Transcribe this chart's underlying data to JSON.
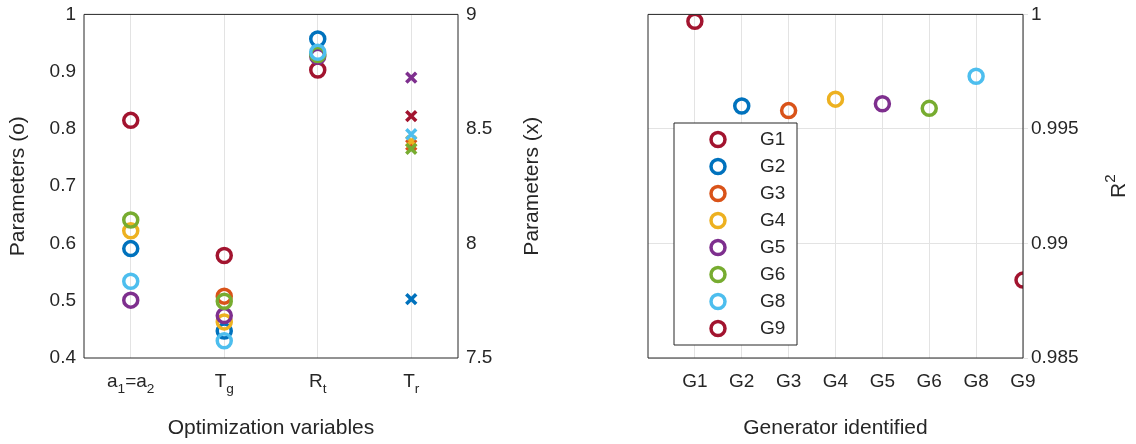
{
  "chart_data": [
    {
      "type": "scatter",
      "xlabel": "Optimization variables",
      "ylabel": "Parameters (o)",
      "y2label": "Parameters (x)",
      "categories": [
        "a$_{1}$=a$_{2}$",
        "T$_{g}$",
        "R$_{t}$",
        "T$_{r}$"
      ],
      "ylim": [
        0.4,
        1
      ],
      "yticks": [
        0.4,
        0.5,
        0.6,
        0.7,
        0.8,
        0.9,
        1
      ],
      "y2lim": [
        7.5,
        9
      ],
      "y2ticks": [
        7.5,
        8,
        8.5,
        9
      ],
      "grid": "x",
      "marker": "circle",
      "series": [
        {
          "color": "#a2142f",
          "values": [
            0.815,
            0.579,
            0.903,
            null
          ]
        },
        {
          "color": "#0072bd",
          "values": [
            0.591,
            0.447,
            0.957,
            null
          ]
        },
        {
          "color": "#d95319",
          "values": [
            null,
            0.508,
            null,
            null
          ]
        },
        {
          "color": "#edb120",
          "values": [
            0.622,
            0.463,
            null,
            null
          ]
        },
        {
          "color": "#7e2f8e",
          "values": [
            0.501,
            0.474,
            0.927,
            null
          ]
        },
        {
          "color": "#77ac30",
          "values": [
            0.641,
            0.499,
            0.93,
            null
          ]
        },
        {
          "color": "#4dbeee",
          "values": [
            0.534,
            0.43,
            0.934,
            null
          ]
        },
        {
          "color": "#a2142f",
          "axis": "y2",
          "marker": "cross",
          "values": [
            null,
            null,
            null,
            8.556
          ]
        },
        {
          "color": "#0072bd",
          "axis": "y2",
          "marker": "cross",
          "values": [
            null,
            null,
            null,
            7.757
          ]
        },
        {
          "color": "#d95319",
          "axis": "y2",
          "marker": "cross",
          "values": [
            null,
            null,
            null,
            8.43
          ]
        },
        {
          "color": "#edb120",
          "axis": "y2",
          "marker": "cross",
          "values": [
            null,
            null,
            null,
            8.446
          ]
        },
        {
          "color": "#7e2f8e",
          "axis": "y2",
          "marker": "cross",
          "values": [
            null,
            null,
            null,
            8.724
          ]
        },
        {
          "color": "#77ac30",
          "axis": "y2",
          "marker": "cross",
          "values": [
            null,
            null,
            null,
            8.413
          ]
        },
        {
          "color": "#4dbeee",
          "axis": "y2",
          "marker": "cross",
          "values": [
            null,
            null,
            null,
            8.477
          ]
        }
      ]
    },
    {
      "type": "scatter",
      "xlabel": "Generator identified",
      "ylabel": "R$^{2}$",
      "categories": [
        "G1",
        "G2",
        "G3",
        "G4",
        "G5",
        "G6",
        "G8",
        "G9"
      ],
      "ylim": [
        0.985,
        1
      ],
      "yticks": [
        0.985,
        0.99,
        0.995,
        1
      ],
      "grid": true,
      "marker": "circle",
      "legend": "bottom left",
      "series": [
        {
          "name": "G1",
          "color": "#a2142f",
          "values": [
            0.9997,
            null,
            null,
            null,
            null,
            null,
            null,
            null
          ]
        },
        {
          "name": "G2",
          "color": "#0072bd",
          "values": [
            null,
            0.996,
            null,
            null,
            null,
            null,
            null,
            null
          ]
        },
        {
          "name": "G3",
          "color": "#d95319",
          "values": [
            null,
            null,
            0.9958,
            null,
            null,
            null,
            null,
            null
          ]
        },
        {
          "name": "G4",
          "color": "#edb120",
          "values": [
            null,
            null,
            null,
            0.9963,
            null,
            null,
            null,
            null
          ]
        },
        {
          "name": "G5",
          "color": "#7e2f8e",
          "values": [
            null,
            null,
            null,
            null,
            0.9961,
            null,
            null,
            null
          ]
        },
        {
          "name": "G6",
          "color": "#77ac30",
          "values": [
            null,
            null,
            null,
            null,
            null,
            0.9959,
            null,
            null
          ]
        },
        {
          "name": "G8",
          "color": "#4dbeee",
          "values": [
            null,
            null,
            null,
            null,
            null,
            null,
            0.9973,
            null
          ]
        },
        {
          "name": "G9",
          "color": "#a2142f",
          "values": [
            null,
            null,
            null,
            null,
            null,
            null,
            null,
            0.9884
          ]
        }
      ]
    }
  ]
}
